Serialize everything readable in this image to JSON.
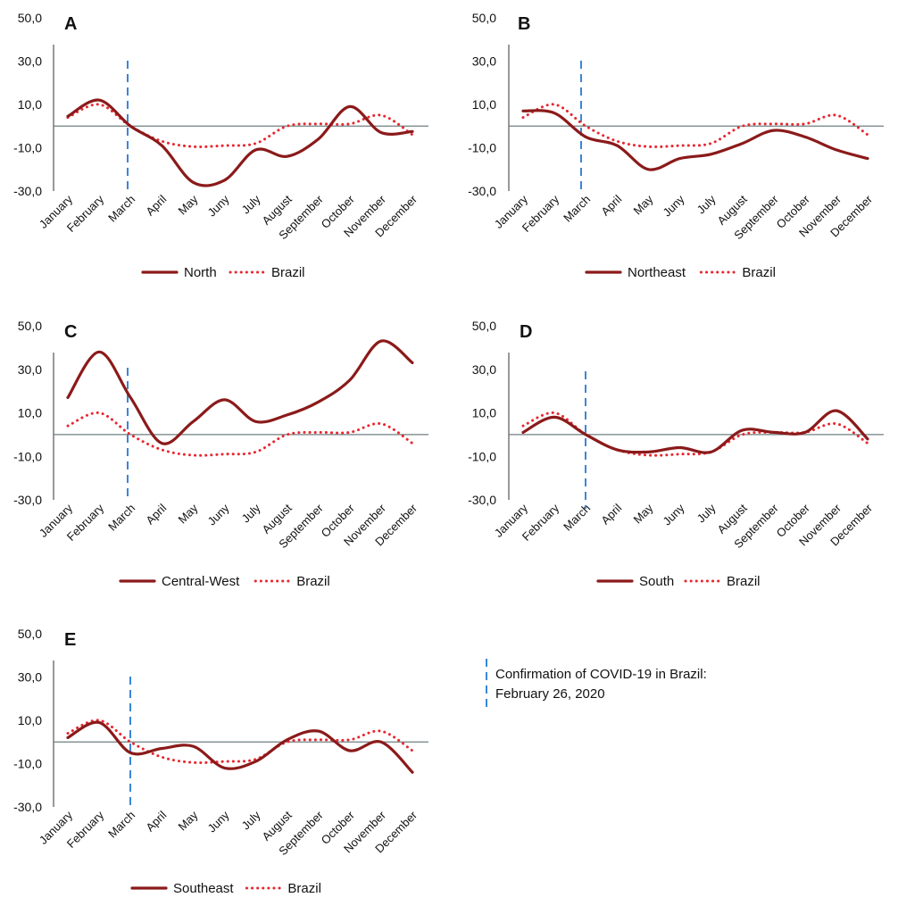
{
  "chart_data": [
    {
      "panel": "A",
      "type": "line",
      "ylim": [
        -30,
        50
      ],
      "yticks": [
        "50,0",
        "30,0",
        "10,0",
        "-10,0",
        "-30,0"
      ],
      "categories": [
        "January",
        "February",
        "March",
        "April",
        "May",
        "Juny",
        "July",
        "August",
        "September",
        "October",
        "November",
        "December"
      ],
      "series": [
        {
          "name": "North",
          "style": "solid",
          "color": "#8b1a1a",
          "values": [
            4.5,
            12,
            0,
            -9,
            -26,
            -25,
            -11,
            -14,
            -6,
            9,
            -3,
            -2.5
          ]
        },
        {
          "name": "Brazil",
          "style": "dotted",
          "color": "#e8262f",
          "values": [
            4,
            10,
            0,
            -7,
            -9.5,
            -9,
            -8,
            0,
            1,
            1,
            5,
            -4
          ]
        }
      ],
      "marker_category": "March",
      "grid": false
    },
    {
      "panel": "B",
      "type": "line",
      "ylim": [
        -30,
        50
      ],
      "yticks": [
        "50,0",
        "30,0",
        "10,0",
        "-10,0",
        "-30,0"
      ],
      "categories": [
        "January",
        "February",
        "March",
        "April",
        "May",
        "Juny",
        "July",
        "August",
        "September",
        "October",
        "November",
        "December"
      ],
      "series": [
        {
          "name": "Northeast",
          "style": "solid",
          "color": "#8b1a1a",
          "values": [
            7,
            6,
            -5,
            -9,
            -20,
            -15,
            -13,
            -8,
            -2,
            -5,
            -11,
            -15
          ]
        },
        {
          "name": "Brazil",
          "style": "dotted",
          "color": "#e8262f",
          "values": [
            4,
            10,
            0,
            -7,
            -9.5,
            -9,
            -8,
            0,
            1,
            1,
            5,
            -4
          ]
        }
      ],
      "marker_category": "March",
      "grid": false
    },
    {
      "panel": "C",
      "type": "line",
      "ylim": [
        -30,
        50
      ],
      "yticks": [
        "50,0",
        "30,0",
        "10,0",
        "-10,0",
        "-30,0"
      ],
      "categories": [
        "January",
        "February",
        "March",
        "April",
        "May",
        "Juny",
        "July",
        "August",
        "September",
        "October",
        "November",
        "December"
      ],
      "series": [
        {
          "name": "Central-West",
          "style": "solid",
          "color": "#8b1a1a",
          "values": [
            17,
            38,
            17,
            -4,
            6,
            16,
            6,
            9,
            15,
            25,
            43,
            33
          ]
        },
        {
          "name": "Brazil",
          "style": "dotted",
          "color": "#e8262f",
          "values": [
            4,
            10,
            0,
            -7,
            -9.5,
            -9,
            -8,
            0,
            1,
            1,
            5,
            -4
          ]
        }
      ],
      "marker_category": "March",
      "grid": false
    },
    {
      "panel": "D",
      "type": "line",
      "ylim": [
        -30,
        50
      ],
      "yticks": [
        "50,0",
        "30,0",
        "10,0",
        "-10,0",
        "-30,0"
      ],
      "categories": [
        "January",
        "February",
        "March",
        "April",
        "May",
        "Juny",
        "July",
        "August",
        "September",
        "October",
        "November",
        "December"
      ],
      "series": [
        {
          "name": "South",
          "style": "solid",
          "color": "#8b1a1a",
          "values": [
            1,
            8,
            0,
            -7,
            -8,
            -6,
            -8,
            2,
            1,
            1,
            11,
            -2
          ]
        },
        {
          "name": "Brazil",
          "style": "dotted",
          "color": "#e8262f",
          "values": [
            4,
            10,
            0,
            -7,
            -9.5,
            -9,
            -8,
            0,
            1,
            1,
            5,
            -4
          ]
        }
      ],
      "marker_category": "March",
      "grid": false
    },
    {
      "panel": "E",
      "type": "line",
      "ylim": [
        -30,
        50
      ],
      "yticks": [
        "50,0",
        "30,0",
        "10,0",
        "-10,0",
        "-30,0"
      ],
      "categories": [
        "January",
        "February",
        "March",
        "April",
        "May",
        "Juny",
        "July",
        "August",
        "September",
        "October",
        "November",
        "December"
      ],
      "series": [
        {
          "name": "Southeast",
          "style": "solid",
          "color": "#8b1a1a",
          "values": [
            2,
            9,
            -5,
            -3,
            -2,
            -12,
            -9,
            1,
            5,
            -4,
            0,
            -14
          ]
        },
        {
          "name": "Brazil",
          "style": "dotted",
          "color": "#e8262f",
          "values": [
            4,
            10,
            0,
            -7,
            -9.5,
            -9,
            -8,
            0,
            1,
            1,
            5,
            -4
          ]
        }
      ],
      "marker_category": "March",
      "grid": false
    }
  ],
  "note": {
    "line1": "Confirmation of COVID-19 in Brazil:",
    "line2": "February 26, 2020",
    "marker_color": "#3b86d6"
  },
  "colors": {
    "axis": "#555555",
    "zero_line": "#6f7f80"
  }
}
